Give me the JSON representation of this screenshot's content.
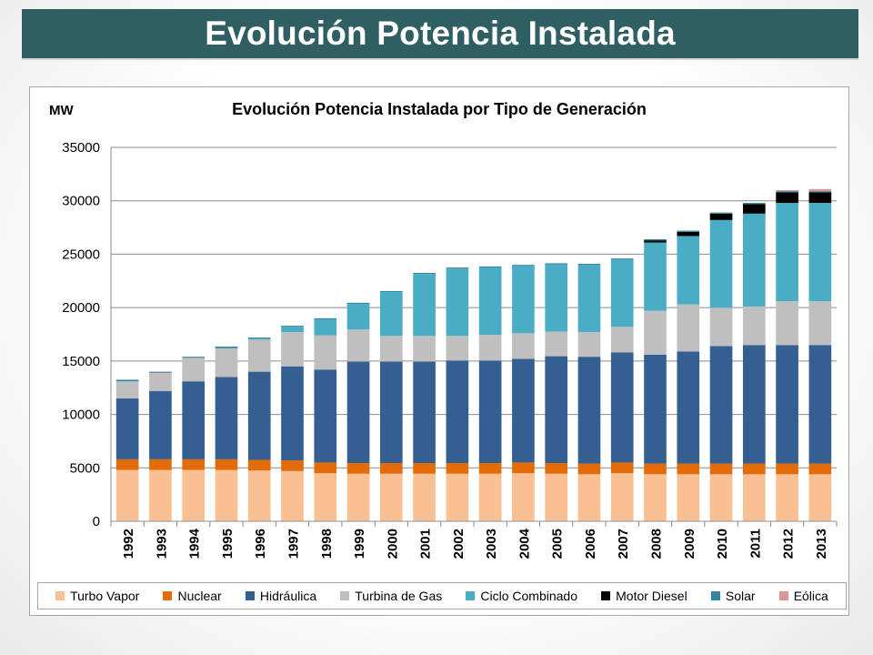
{
  "slide": {
    "title": "Evolución Potencia Instalada"
  },
  "chart_data": {
    "type": "bar",
    "stacked": true,
    "title": "Evolución Potencia Instalada por Tipo de Generación",
    "ylabel": "MW",
    "xlabel": "",
    "ylim": [
      0,
      35000
    ],
    "yticks": [
      0,
      5000,
      10000,
      15000,
      20000,
      25000,
      30000,
      35000
    ],
    "grid": true,
    "legend_position": "bottom",
    "categories": [
      "1992",
      "1993",
      "1994",
      "1995",
      "1996",
      "1997",
      "1998",
      "1999",
      "2000",
      "2001",
      "2002",
      "2003",
      "2004",
      "2005",
      "2006",
      "2007",
      "2008",
      "2009",
      "2010",
      "2011",
      "2012",
      "2013"
    ],
    "series": [
      {
        "name": "Turbo Vapor",
        "color": "#f9c093",
        "values": [
          4800,
          4800,
          4800,
          4800,
          4750,
          4700,
          4500,
          4450,
          4450,
          4450,
          4450,
          4450,
          4500,
          4450,
          4400,
          4500,
          4400,
          4400,
          4400,
          4400,
          4400,
          4400
        ]
      },
      {
        "name": "Nuclear",
        "color": "#e36c0a",
        "values": [
          1000,
          1000,
          1000,
          1000,
          1000,
          1000,
          1000,
          1000,
          1000,
          1000,
          1000,
          1000,
          1000,
          1000,
          1000,
          1000,
          1000,
          1000,
          1000,
          1000,
          1000,
          1000
        ]
      },
      {
        "name": "Hidráulica",
        "color": "#365f91",
        "values": [
          5700,
          6400,
          7300,
          7700,
          8250,
          8800,
          8700,
          9500,
          9500,
          9500,
          9600,
          9600,
          9700,
          10000,
          10000,
          10300,
          10200,
          10500,
          11000,
          11100,
          11100,
          11100
        ]
      },
      {
        "name": "Turbina de Gas",
        "color": "#bfbfbf",
        "values": [
          1600,
          1700,
          2200,
          2700,
          3000,
          3200,
          3200,
          3000,
          2400,
          2400,
          2300,
          2400,
          2400,
          2300,
          2300,
          2400,
          4100,
          4400,
          3600,
          3600,
          4100,
          4100
        ]
      },
      {
        "name": "Ciclo Combinado",
        "color": "#4bacc6",
        "values": [
          0,
          0,
          0,
          0,
          100,
          500,
          1500,
          2400,
          4100,
          5800,
          6300,
          6300,
          6300,
          6300,
          6300,
          6300,
          6400,
          6400,
          8200,
          8700,
          9200,
          9200
        ]
      },
      {
        "name": "Motor Diesel",
        "color": "#000000",
        "values": [
          0,
          0,
          0,
          0,
          0,
          0,
          0,
          0,
          0,
          0,
          0,
          0,
          0,
          0,
          0,
          0,
          200,
          400,
          600,
          900,
          1000,
          1000
        ]
      },
      {
        "name": "Solar",
        "color": "#31859c",
        "values": [
          150,
          100,
          100,
          150,
          100,
          100,
          100,
          100,
          100,
          100,
          100,
          100,
          100,
          100,
          100,
          100,
          100,
          100,
          100,
          100,
          100,
          100
        ]
      },
      {
        "name": "Eólica",
        "color": "#d99694",
        "values": [
          0,
          0,
          0,
          0,
          0,
          0,
          0,
          0,
          0,
          0,
          0,
          0,
          0,
          0,
          0,
          0,
          0,
          0,
          0,
          0,
          100,
          200
        ]
      }
    ]
  }
}
